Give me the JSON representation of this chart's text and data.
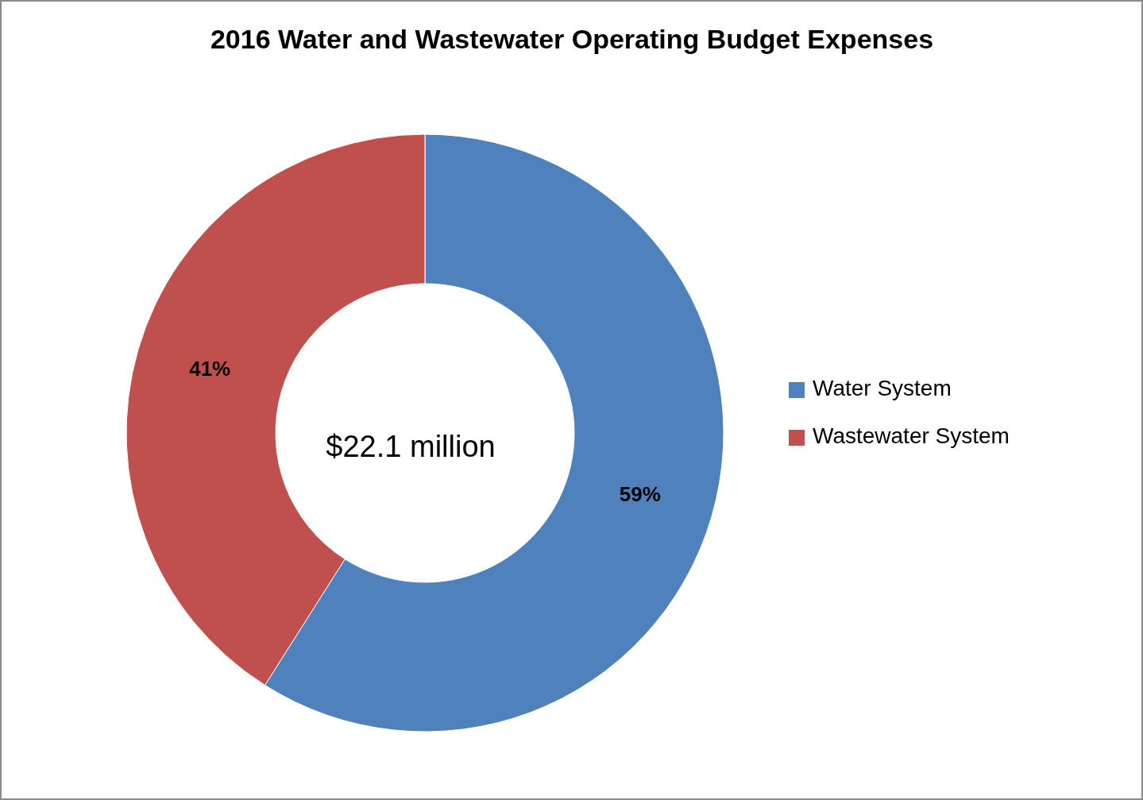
{
  "chart_data": {
    "type": "donut",
    "title": "2016 Water and Wastewater Operating Budget Expenses",
    "categories": [
      "Water System",
      "Wastewater System"
    ],
    "values": [
      59,
      41
    ],
    "colors": [
      "#4f81bd",
      "#c0504d"
    ],
    "value_labels": [
      "59%",
      "41%"
    ],
    "legend": "right",
    "annotations": [
      "$22.1 million"
    ]
  }
}
